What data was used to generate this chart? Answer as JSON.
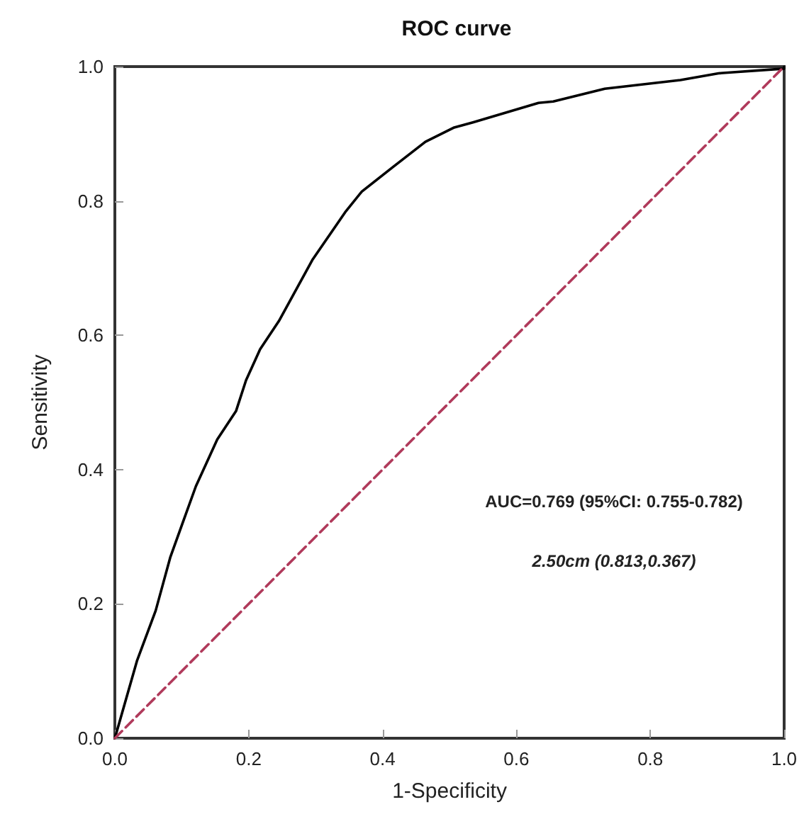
{
  "chart_data": {
    "type": "line",
    "title": "ROC curve",
    "xlabel": "1-Specificity",
    "ylabel": "Sensitivity",
    "annotations": [
      "AUC=0.769 (95%CI: 0.755-0.782)",
      "2.50cm (0.813,0.367)"
    ],
    "xlim": [
      0,
      1
    ],
    "ylim": [
      0,
      1
    ],
    "xticks": [
      {
        "value": 0,
        "label": "0.0"
      },
      {
        "value": 0.2,
        "label": "0.2"
      },
      {
        "value": 0.4,
        "label": "0.4"
      },
      {
        "value": 0.6,
        "label": "0.6"
      },
      {
        "value": 0.8,
        "label": "0.8"
      },
      {
        "value": 1,
        "label": "1.0"
      }
    ],
    "yticks": [
      {
        "value": 0,
        "label": "0.0"
      },
      {
        "value": 0.2,
        "label": "0.2"
      },
      {
        "value": 0.4,
        "label": "0.4"
      },
      {
        "value": 0.6,
        "label": "0.6"
      },
      {
        "value": 0.8,
        "label": "0.8"
      },
      {
        "value": 1,
        "label": "1.0"
      }
    ],
    "grid": false,
    "marker": "none",
    "series": [
      {
        "color": "#000000",
        "line_style": "solid",
        "x": [
          0,
          0.033,
          0.061,
          0.083,
          0.121,
          0.153,
          0.181,
          0.196,
          0.217,
          0.245,
          0.295,
          0.344,
          0.369,
          0.415,
          0.464,
          0.506,
          0.535,
          0.633,
          0.655,
          0.732,
          0.845,
          0.902,
          1.0,
          1.0
        ],
        "values": [
          0,
          0.115,
          0.19,
          0.27,
          0.375,
          0.445,
          0.487,
          0.533,
          0.579,
          0.621,
          0.712,
          0.783,
          0.814,
          0.85,
          0.888,
          0.909,
          0.917,
          0.946,
          0.948,
          0.967,
          0.98,
          0.99,
          0.997,
          1.0
        ]
      },
      {
        "color": "#b03a5b",
        "line_style": "dashed",
        "x": [
          0,
          1
        ],
        "values": [
          0,
          1
        ]
      }
    ]
  }
}
